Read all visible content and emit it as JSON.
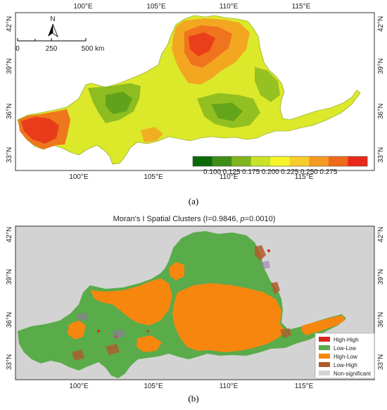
{
  "panel_a": {
    "top_lon_labels": [
      "100°E",
      "105°E",
      "110°E",
      "115°E"
    ],
    "bottom_lon_labels": [
      "100°E",
      "105°E",
      "110°E",
      "115°E"
    ],
    "left_lat_labels": [
      "42°N",
      "39°N",
      "36°N",
      "33°N"
    ],
    "right_lat_labels": [
      "42°N",
      "39°N",
      "36°N",
      "33°N"
    ],
    "north_label": "N",
    "scale_labels": [
      "0",
      "250",
      "500 km"
    ],
    "colorbar": {
      "colors": [
        "#0a6a0a",
        "#3e8d18",
        "#7fb51f",
        "#c8e22a",
        "#f5f52a",
        "#f8cc2a",
        "#f59a22",
        "#ef6a1c",
        "#e8281a"
      ],
      "tick_labels": [
        "0.100",
        "0.125",
        "0.175",
        "0.200",
        "0.225",
        "0.250",
        "0.275"
      ]
    },
    "caption": "(a)"
  },
  "panel_b": {
    "title": "Moran's I Spatial Clusters (I=0.9846, p=0.0010)",
    "title_parts": {
      "before": "Moran's I Spatial Clusters (I=0.9846, ",
      "p": "p",
      "after": "=0.0010)"
    },
    "bottom_lon_labels": [
      "100°E",
      "105°E",
      "110°E",
      "115°E"
    ],
    "left_lat_labels": [
      "42°N",
      "39°N",
      "36°N",
      "33°N"
    ],
    "right_lat_labels": [
      "42°N",
      "39°N",
      "36°N",
      "33°N"
    ],
    "legend": [
      {
        "label": "High-High",
        "color": "#d7261e"
      },
      {
        "label": "Low-Low",
        "color": "#5aab4a"
      },
      {
        "label": "High-Low",
        "color": "#f7860f"
      },
      {
        "label": "Low-High",
        "color": "#b05a2a"
      },
      {
        "label": "Non-significant",
        "color": "#d3d3d3"
      }
    ],
    "caption": "(b)"
  }
}
